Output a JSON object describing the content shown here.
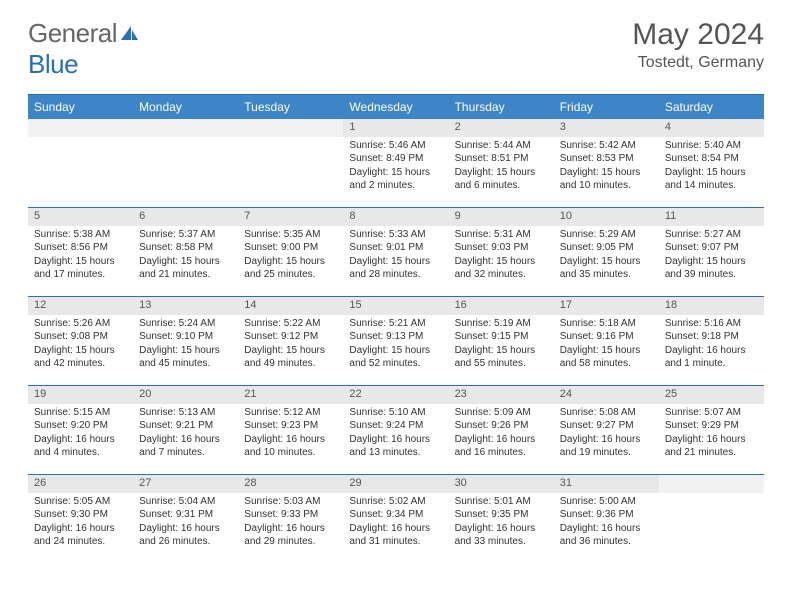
{
  "brand": {
    "part1": "General",
    "part2": "Blue"
  },
  "title": "May 2024",
  "location": "Tostedt, Germany",
  "colors": {
    "header_bg": "#3d85c6",
    "border": "#2a6ebb",
    "daynum_bg": "#e8e8e8",
    "text": "#333333"
  },
  "weekdays": [
    "Sunday",
    "Monday",
    "Tuesday",
    "Wednesday",
    "Thursday",
    "Friday",
    "Saturday"
  ],
  "weeks": [
    [
      {
        "blank": true
      },
      {
        "blank": true
      },
      {
        "blank": true
      },
      {
        "day": "1",
        "sunrise": "Sunrise: 5:46 AM",
        "sunset": "Sunset: 8:49 PM",
        "daylight1": "Daylight: 15 hours",
        "daylight2": "and 2 minutes."
      },
      {
        "day": "2",
        "sunrise": "Sunrise: 5:44 AM",
        "sunset": "Sunset: 8:51 PM",
        "daylight1": "Daylight: 15 hours",
        "daylight2": "and 6 minutes."
      },
      {
        "day": "3",
        "sunrise": "Sunrise: 5:42 AM",
        "sunset": "Sunset: 8:53 PM",
        "daylight1": "Daylight: 15 hours",
        "daylight2": "and 10 minutes."
      },
      {
        "day": "4",
        "sunrise": "Sunrise: 5:40 AM",
        "sunset": "Sunset: 8:54 PM",
        "daylight1": "Daylight: 15 hours",
        "daylight2": "and 14 minutes."
      }
    ],
    [
      {
        "day": "5",
        "sunrise": "Sunrise: 5:38 AM",
        "sunset": "Sunset: 8:56 PM",
        "daylight1": "Daylight: 15 hours",
        "daylight2": "and 17 minutes."
      },
      {
        "day": "6",
        "sunrise": "Sunrise: 5:37 AM",
        "sunset": "Sunset: 8:58 PM",
        "daylight1": "Daylight: 15 hours",
        "daylight2": "and 21 minutes."
      },
      {
        "day": "7",
        "sunrise": "Sunrise: 5:35 AM",
        "sunset": "Sunset: 9:00 PM",
        "daylight1": "Daylight: 15 hours",
        "daylight2": "and 25 minutes."
      },
      {
        "day": "8",
        "sunrise": "Sunrise: 5:33 AM",
        "sunset": "Sunset: 9:01 PM",
        "daylight1": "Daylight: 15 hours",
        "daylight2": "and 28 minutes."
      },
      {
        "day": "9",
        "sunrise": "Sunrise: 5:31 AM",
        "sunset": "Sunset: 9:03 PM",
        "daylight1": "Daylight: 15 hours",
        "daylight2": "and 32 minutes."
      },
      {
        "day": "10",
        "sunrise": "Sunrise: 5:29 AM",
        "sunset": "Sunset: 9:05 PM",
        "daylight1": "Daylight: 15 hours",
        "daylight2": "and 35 minutes."
      },
      {
        "day": "11",
        "sunrise": "Sunrise: 5:27 AM",
        "sunset": "Sunset: 9:07 PM",
        "daylight1": "Daylight: 15 hours",
        "daylight2": "and 39 minutes."
      }
    ],
    [
      {
        "day": "12",
        "sunrise": "Sunrise: 5:26 AM",
        "sunset": "Sunset: 9:08 PM",
        "daylight1": "Daylight: 15 hours",
        "daylight2": "and 42 minutes."
      },
      {
        "day": "13",
        "sunrise": "Sunrise: 5:24 AM",
        "sunset": "Sunset: 9:10 PM",
        "daylight1": "Daylight: 15 hours",
        "daylight2": "and 45 minutes."
      },
      {
        "day": "14",
        "sunrise": "Sunrise: 5:22 AM",
        "sunset": "Sunset: 9:12 PM",
        "daylight1": "Daylight: 15 hours",
        "daylight2": "and 49 minutes."
      },
      {
        "day": "15",
        "sunrise": "Sunrise: 5:21 AM",
        "sunset": "Sunset: 9:13 PM",
        "daylight1": "Daylight: 15 hours",
        "daylight2": "and 52 minutes."
      },
      {
        "day": "16",
        "sunrise": "Sunrise: 5:19 AM",
        "sunset": "Sunset: 9:15 PM",
        "daylight1": "Daylight: 15 hours",
        "daylight2": "and 55 minutes."
      },
      {
        "day": "17",
        "sunrise": "Sunrise: 5:18 AM",
        "sunset": "Sunset: 9:16 PM",
        "daylight1": "Daylight: 15 hours",
        "daylight2": "and 58 minutes."
      },
      {
        "day": "18",
        "sunrise": "Sunrise: 5:16 AM",
        "sunset": "Sunset: 9:18 PM",
        "daylight1": "Daylight: 16 hours",
        "daylight2": "and 1 minute."
      }
    ],
    [
      {
        "day": "19",
        "sunrise": "Sunrise: 5:15 AM",
        "sunset": "Sunset: 9:20 PM",
        "daylight1": "Daylight: 16 hours",
        "daylight2": "and 4 minutes."
      },
      {
        "day": "20",
        "sunrise": "Sunrise: 5:13 AM",
        "sunset": "Sunset: 9:21 PM",
        "daylight1": "Daylight: 16 hours",
        "daylight2": "and 7 minutes."
      },
      {
        "day": "21",
        "sunrise": "Sunrise: 5:12 AM",
        "sunset": "Sunset: 9:23 PM",
        "daylight1": "Daylight: 16 hours",
        "daylight2": "and 10 minutes."
      },
      {
        "day": "22",
        "sunrise": "Sunrise: 5:10 AM",
        "sunset": "Sunset: 9:24 PM",
        "daylight1": "Daylight: 16 hours",
        "daylight2": "and 13 minutes."
      },
      {
        "day": "23",
        "sunrise": "Sunrise: 5:09 AM",
        "sunset": "Sunset: 9:26 PM",
        "daylight1": "Daylight: 16 hours",
        "daylight2": "and 16 minutes."
      },
      {
        "day": "24",
        "sunrise": "Sunrise: 5:08 AM",
        "sunset": "Sunset: 9:27 PM",
        "daylight1": "Daylight: 16 hours",
        "daylight2": "and 19 minutes."
      },
      {
        "day": "25",
        "sunrise": "Sunrise: 5:07 AM",
        "sunset": "Sunset: 9:29 PM",
        "daylight1": "Daylight: 16 hours",
        "daylight2": "and 21 minutes."
      }
    ],
    [
      {
        "day": "26",
        "sunrise": "Sunrise: 5:05 AM",
        "sunset": "Sunset: 9:30 PM",
        "daylight1": "Daylight: 16 hours",
        "daylight2": "and 24 minutes."
      },
      {
        "day": "27",
        "sunrise": "Sunrise: 5:04 AM",
        "sunset": "Sunset: 9:31 PM",
        "daylight1": "Daylight: 16 hours",
        "daylight2": "and 26 minutes."
      },
      {
        "day": "28",
        "sunrise": "Sunrise: 5:03 AM",
        "sunset": "Sunset: 9:33 PM",
        "daylight1": "Daylight: 16 hours",
        "daylight2": "and 29 minutes."
      },
      {
        "day": "29",
        "sunrise": "Sunrise: 5:02 AM",
        "sunset": "Sunset: 9:34 PM",
        "daylight1": "Daylight: 16 hours",
        "daylight2": "and 31 minutes."
      },
      {
        "day": "30",
        "sunrise": "Sunrise: 5:01 AM",
        "sunset": "Sunset: 9:35 PM",
        "daylight1": "Daylight: 16 hours",
        "daylight2": "and 33 minutes."
      },
      {
        "day": "31",
        "sunrise": "Sunrise: 5:00 AM",
        "sunset": "Sunset: 9:36 PM",
        "daylight1": "Daylight: 16 hours",
        "daylight2": "and 36 minutes."
      },
      {
        "blank": true
      }
    ]
  ]
}
